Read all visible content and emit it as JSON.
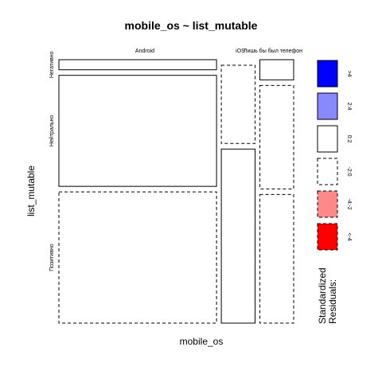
{
  "chart_data": {
    "type": "mosaic",
    "title": "mobile_os ~ list_mutable",
    "xlabel": "mobile_os",
    "ylabel": "list_mutable",
    "categories_x": [
      "Android",
      "iOS",
      "Лишь бы был телефон"
    ],
    "categories_y": [
      "Негативно",
      "Нейтрально",
      "Позитивно"
    ],
    "col_proportions": [
      0.7,
      0.15,
      0.15
    ],
    "cells": [
      {
        "x": "Android",
        "y": "Негативно",
        "proportion": 0.04,
        "residual": "<-2:0"
      },
      {
        "x": "Android",
        "y": "Нейтрально",
        "proportion": 0.44,
        "residual": "0:2"
      },
      {
        "x": "Android",
        "y": "Позитивно",
        "proportion": 0.52,
        "residual": "-2:0"
      },
      {
        "x": "iOS",
        "y": "Негативно",
        "proportion": 0.0,
        "residual": "-2:0"
      },
      {
        "x": "iOS",
        "y": "Нейтрально",
        "proportion": 0.31,
        "residual": "-2:0"
      },
      {
        "x": "iOS",
        "y": "Позитивно",
        "proportion": 0.69,
        "residual": "0:2"
      },
      {
        "x": "Лишь бы был телефон",
        "y": "Негативно",
        "proportion": 0.08,
        "residual": "0:2"
      },
      {
        "x": "Лишь бы был телефон",
        "y": "Нейтрально",
        "proportion": 0.41,
        "residual": "-2:0"
      },
      {
        "x": "Лишь бы был телефон",
        "y": "Позитивно",
        "proportion": 0.51,
        "residual": "-2:0"
      }
    ],
    "legend": {
      "title_lines": [
        "Standardized",
        "Residuals:"
      ],
      "items": [
        {
          "label": ">4",
          "fill": "#0000ff",
          "dashed": false
        },
        {
          "label": "2:4",
          "fill": "#8888ff",
          "dashed": false
        },
        {
          "label": "0:2",
          "fill": "#ffffff",
          "dashed": false
        },
        {
          "label": "-2:0",
          "fill": "#ffffff",
          "dashed": true
        },
        {
          "label": "-4:-2",
          "fill": "#ff8888",
          "dashed": true
        },
        {
          "label": "<-4",
          "fill": "#ff0000",
          "dashed": true
        }
      ]
    }
  }
}
